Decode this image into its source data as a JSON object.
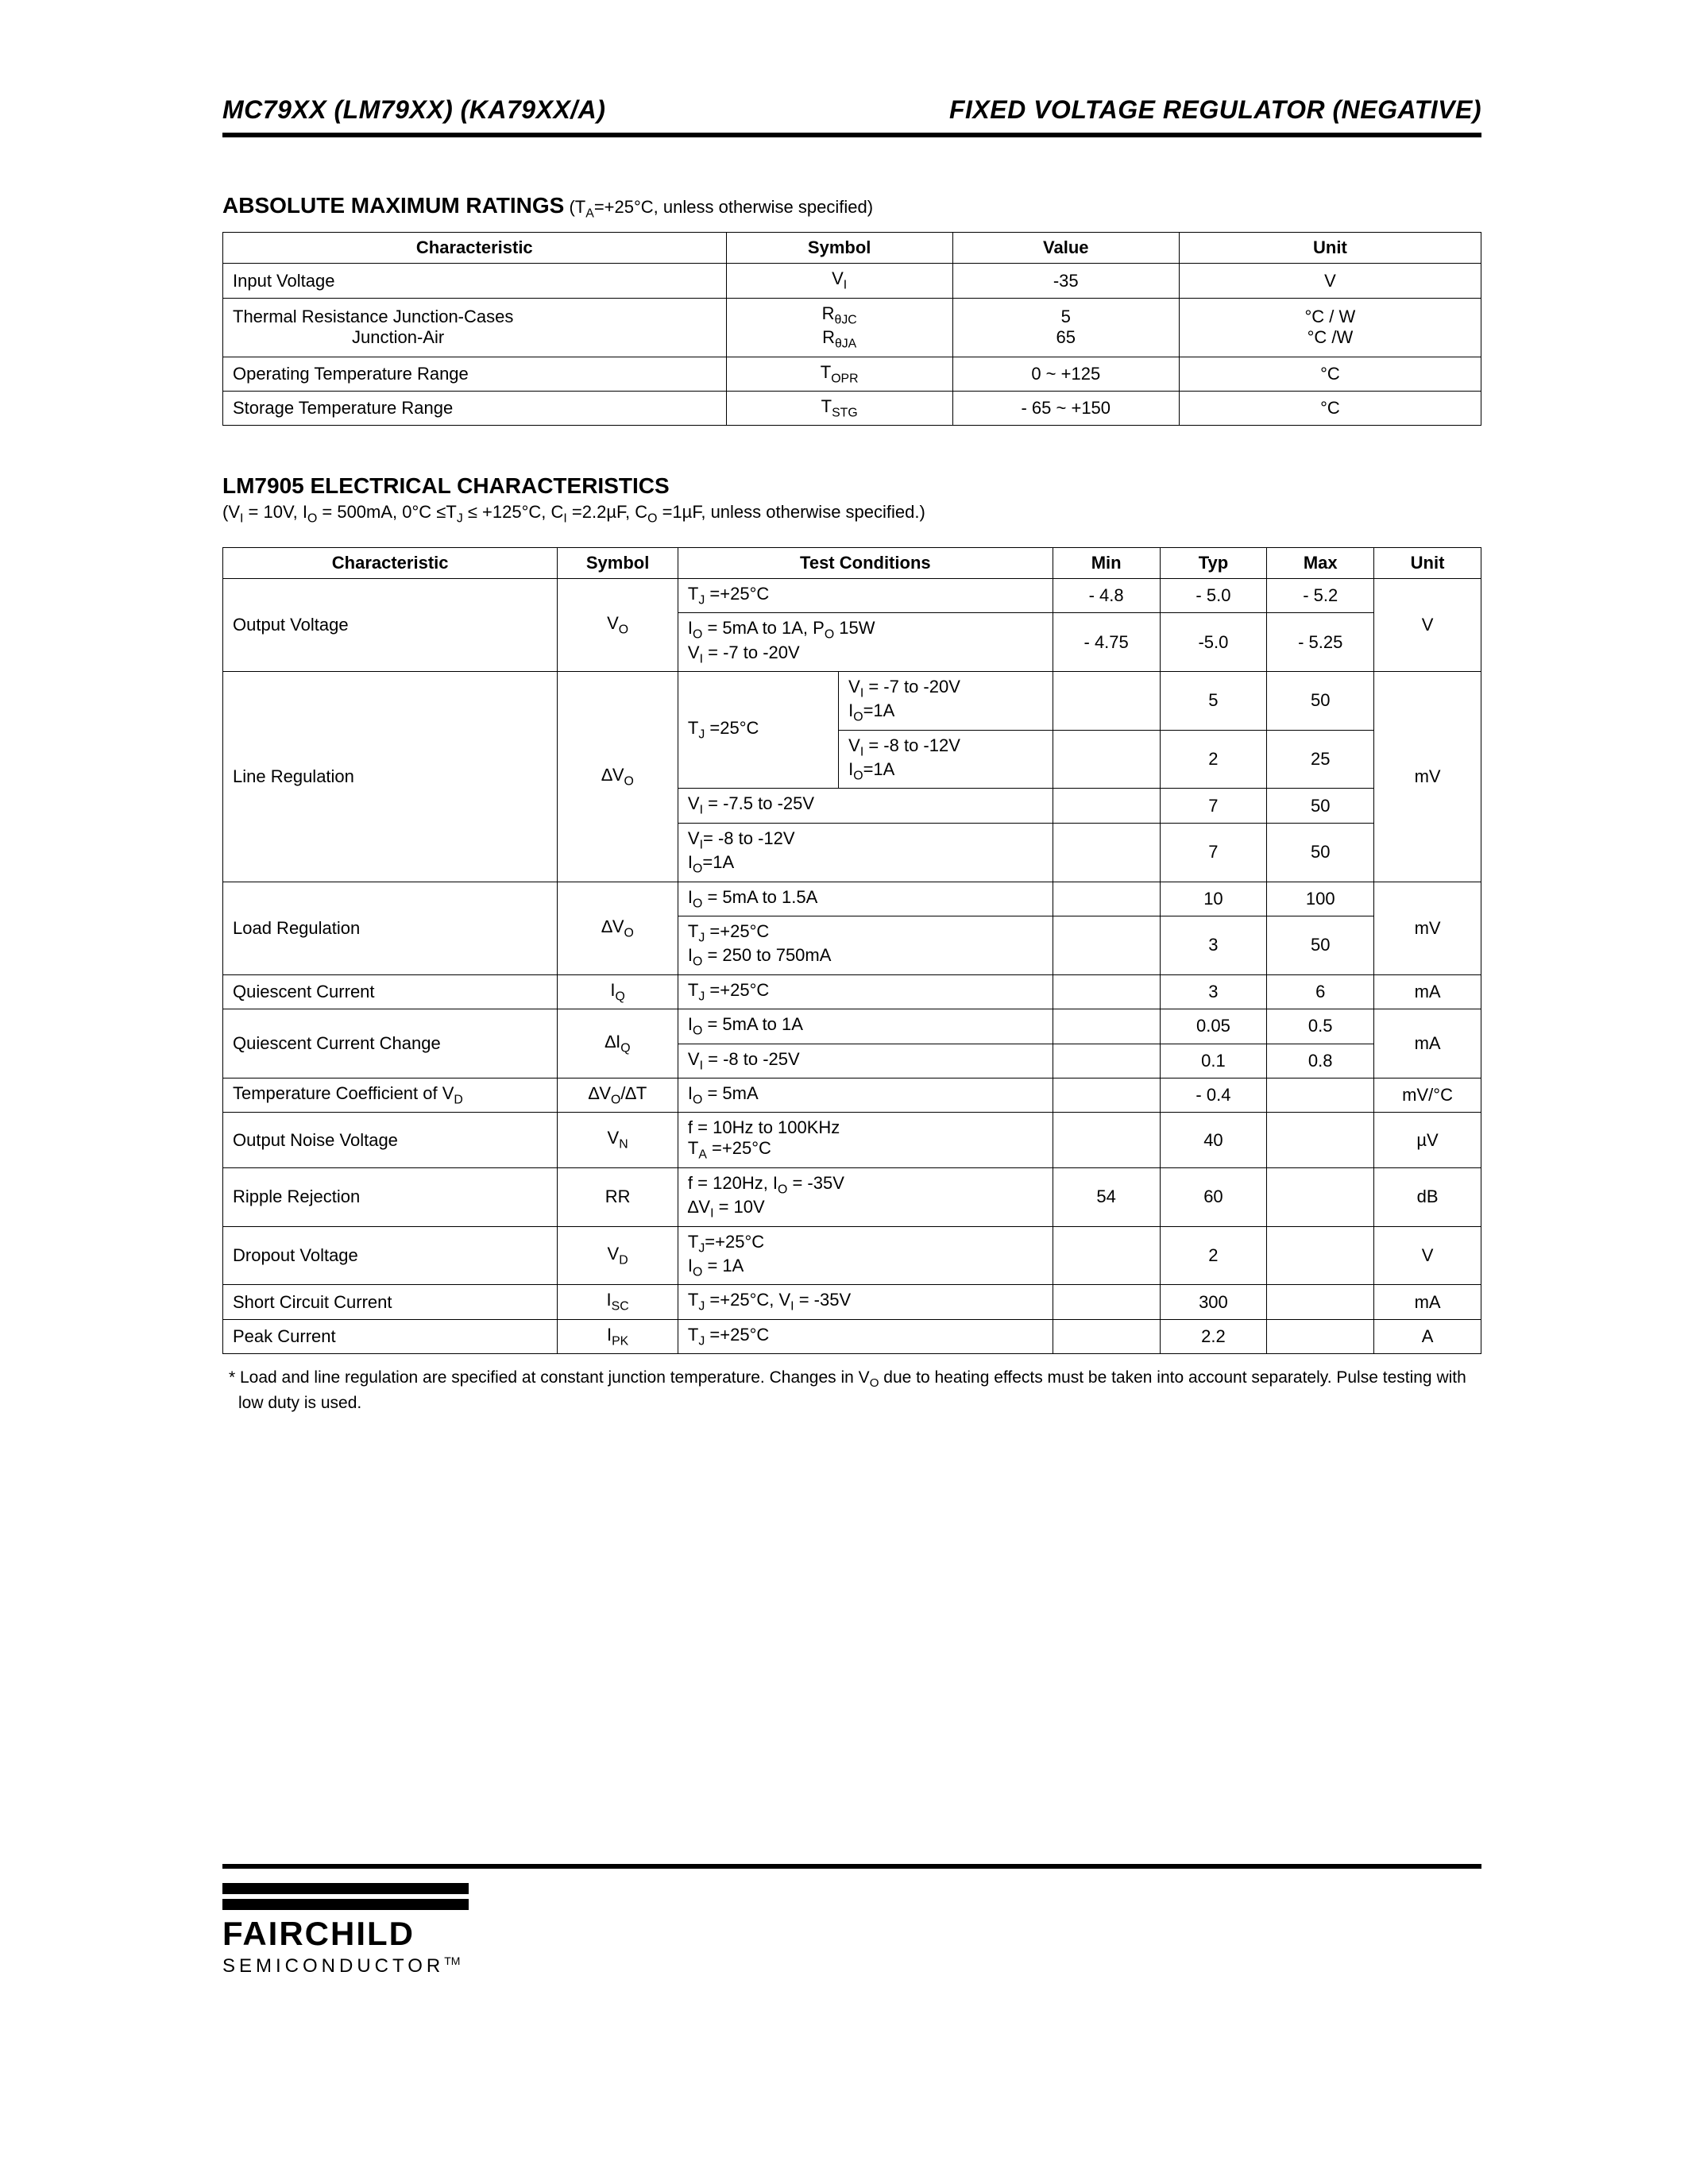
{
  "header": {
    "left": "MC79XX (LM79XX) (KA79XX/A)",
    "right": "FIXED VOLTAGE REGULATOR (NEGATIVE)"
  },
  "abs_max": {
    "title": "ABSOLUTE MAXIMUM RATINGS",
    "subtitle": " (T<sub>A</sub>=+25°C, unless otherwise specified)",
    "columns": [
      "Characteristic",
      "Symbol",
      "Value",
      "Unit"
    ],
    "rows": [
      {
        "char": "Input Voltage",
        "sym": "V<sub>I</sub>",
        "val": "-35",
        "unit": "V"
      },
      {
        "char": "Thermal Resistance Junction-Cases",
        "char2": "Junction-Air",
        "sym": "R<sub>θJC</sub>",
        "sym2": "R<sub>θJA</sub>",
        "val": "5",
        "val2": "65",
        "unit": "°C / W",
        "unit2": "°C /W"
      },
      {
        "char": "Operating Temperature Range",
        "sym": "T<sub>OPR</sub>",
        "val": "0 ~ +125",
        "unit": "°C"
      },
      {
        "char": "Storage Temperature Range",
        "sym": "T<sub>STG</sub>",
        "val": "- 65 ~ +150",
        "unit": "°C"
      }
    ]
  },
  "elec": {
    "title": "LM7905 ELECTRICAL CHARACTERISTICS",
    "cond": "(V<sub>I</sub> = 10V, I<sub>O</sub> = 500mA, 0°C ≤T<sub>J</sub> ≤ +125°C, C<sub>I</sub> =2.2µF, C<sub>O</sub> =1µF, unless otherwise specified.)",
    "columns": [
      "Characteristic",
      "Symbol",
      "Test Conditions",
      "Min",
      "Typ",
      "Max",
      "Unit"
    ],
    "groups": [
      {
        "char": "Output Voltage",
        "sym": "V<sub>O</sub>",
        "unit": "V",
        "rows": [
          {
            "tc": "T<sub>J</sub> =+25°C",
            "min": "- 4.8",
            "typ": "- 5.0",
            "max": "- 5.2"
          },
          {
            "tc": "I<sub>O</sub> = 5mA to 1A, P<sub>O</sub>  15W<br>V<sub>I</sub> = -7 to -20V",
            "min": "- 4.75",
            "typ": "-5.0",
            "max": "- 5.25"
          }
        ]
      },
      {
        "char": "Line Regulation",
        "sym": "∆V<sub>O</sub>",
        "unit": "mV",
        "nested": true,
        "outer": "T<sub>J</sub> =25°C",
        "inner": [
          {
            "tc": "V<sub>I</sub> = -7 to -20V<br>I<sub>O</sub>=1A",
            "min": "",
            "typ": "5",
            "max": "50"
          },
          {
            "tc": "V<sub>I</sub> = -8 to -12V<br>I<sub>O</sub>=1A",
            "min": "",
            "typ": "2",
            "max": "25"
          }
        ],
        "rows2": [
          {
            "tc": "V<sub>I</sub> = -7.5 to -25V",
            "min": "",
            "typ": "7",
            "max": "50"
          },
          {
            "tc": "V<sub>I</sub>= -8 to -12V<br>I<sub>O</sub>=1A",
            "min": "",
            "typ": "7",
            "max": "50"
          }
        ]
      },
      {
        "char": "Load Regulation",
        "sym": "∆V<sub>O</sub>",
        "unit": "mV",
        "rows": [
          {
            "tc": "I<sub>O</sub> = 5mA to 1.5A",
            "min": "",
            "typ": "10",
            "max": "100"
          },
          {
            "tc": "T<sub>J</sub> =+25°C<br>I<sub>O</sub> = 250 to 750mA",
            "min": "",
            "typ": "3",
            "max": "50"
          }
        ]
      },
      {
        "char": "Quiescent Current",
        "sym": "I<sub>Q</sub>",
        "unit": "mA",
        "rows": [
          {
            "tc": "T<sub>J</sub> =+25°C",
            "min": "",
            "typ": "3",
            "max": "6"
          }
        ]
      },
      {
        "char": "Quiescent Current Change",
        "sym": "∆I<sub>Q</sub>",
        "unit": "mA",
        "rows": [
          {
            "tc": "I<sub>O</sub> = 5mA to 1A",
            "min": "",
            "typ": "0.05",
            "max": "0.5"
          },
          {
            "tc": "V<sub>I</sub> = -8 to -25V",
            "min": "",
            "typ": "0.1",
            "max": "0.8"
          }
        ]
      },
      {
        "char": "Temperature Coefficient of V<sub>D</sub>",
        "sym": "∆V<sub>O</sub>/∆T",
        "unit": "mV/°C",
        "rows": [
          {
            "tc": "I<sub>O</sub> = 5mA",
            "min": "",
            "typ": "- 0.4",
            "max": ""
          }
        ]
      },
      {
        "char": "Output Noise Voltage",
        "sym": "V<sub>N</sub>",
        "unit": "µV",
        "rows": [
          {
            "tc": "f = 10Hz to 100KHz<br>T<sub>A</sub> =+25°C",
            "min": "",
            "typ": "40",
            "max": ""
          }
        ]
      },
      {
        "char": "Ripple Rejection",
        "sym": "RR",
        "unit": "dB",
        "rows": [
          {
            "tc": "f = 120Hz, I<sub>O</sub> = -35V<br>∆V<sub>I</sub> = 10V",
            "min": "54",
            "typ": "60",
            "max": ""
          }
        ]
      },
      {
        "char": "Dropout Voltage",
        "sym": "V<sub>D</sub>",
        "unit": "V",
        "rows": [
          {
            "tc": "T<sub>J</sub>=+25°C<br>I<sub>O</sub> = 1A",
            "min": "",
            "typ": "2",
            "max": ""
          }
        ]
      },
      {
        "char": "Short Circuit Current",
        "sym": "I<sub>SC</sub>",
        "unit": "mA",
        "rows": [
          {
            "tc": "T<sub>J</sub> =+25°C, V<sub>I</sub> = -35V",
            "min": "",
            "typ": "300",
            "max": ""
          }
        ]
      },
      {
        "char": "Peak Current",
        "sym": "I<sub>PK</sub>",
        "unit": "A",
        "rows": [
          {
            "tc": "T<sub>J</sub> =+25°C",
            "min": "",
            "typ": "2.2",
            "max": ""
          }
        ]
      }
    ],
    "footnote": "* Load and line regulation are specified at constant junction temperature. Changes in V<sub>O</sub> due to heating effects must be taken into account separately. Pulse testing with low duty is used."
  },
  "footer": {
    "brand": "FAIRCHILD",
    "sub": "SEMICONDUCTOR",
    "tm": "TM"
  },
  "colors": {
    "text": "#000000",
    "bg": "#ffffff",
    "rule": "#000000"
  }
}
